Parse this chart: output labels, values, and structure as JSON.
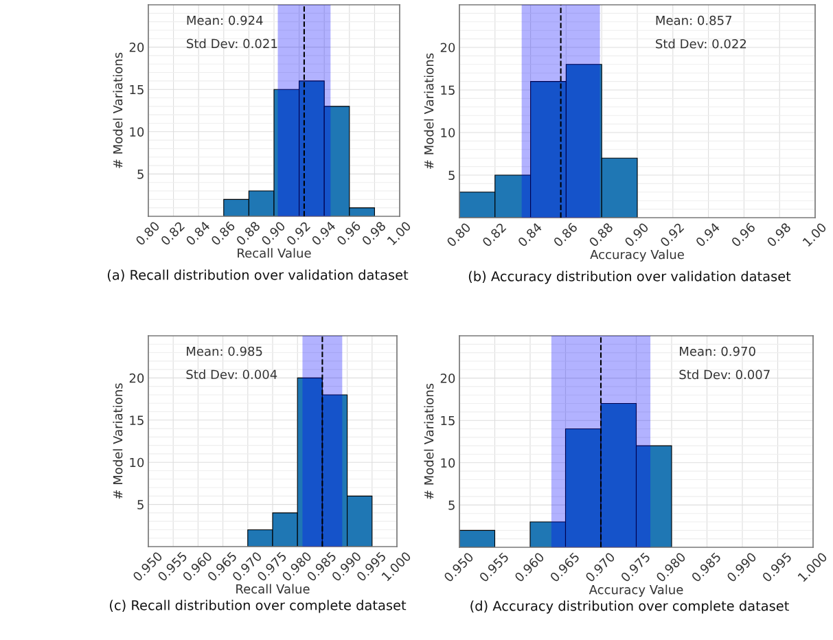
{
  "chart_data": [
    {
      "type": "histogram",
      "xlabel": "Recall Value",
      "ylabel": "# Model Variations",
      "bins": [
        0.86,
        0.88,
        0.9,
        0.92,
        0.94,
        0.96,
        0.98
      ],
      "values": [
        2,
        3,
        15,
        16,
        13,
        1
      ],
      "color": "#1f77b4",
      "xlim": [
        0.8,
        1.0
      ],
      "xticks": [
        {
          "value": 0.8,
          "label": "0.80"
        },
        {
          "value": 0.82,
          "label": "0.82"
        },
        {
          "value": 0.84,
          "label": "0.84"
        },
        {
          "value": 0.86,
          "label": "0.86"
        },
        {
          "value": 0.88,
          "label": "0.88"
        },
        {
          "value": 0.9,
          "label": "0.90"
        },
        {
          "value": 0.92,
          "label": "0.92"
        },
        {
          "value": 0.94,
          "label": "0.94"
        },
        {
          "value": 0.96,
          "label": "0.96"
        },
        {
          "value": 0.98,
          "label": "0.98"
        },
        {
          "value": 1.0,
          "label": "1.00"
        }
      ],
      "ylim": [
        0,
        25
      ],
      "yticks": [
        {
          "value": 1,
          "label": null
        },
        {
          "value": 2,
          "label": null
        },
        {
          "value": 3,
          "label": null
        },
        {
          "value": 4,
          "label": null
        },
        5,
        {
          "value": 6,
          "label": null
        },
        {
          "value": 7,
          "label": null
        },
        {
          "value": 8,
          "label": null
        },
        {
          "value": 9,
          "label": null
        },
        10,
        {
          "value": 11,
          "label": null
        },
        {
          "value": 12,
          "label": null
        },
        {
          "value": 13,
          "label": null
        },
        {
          "value": 14,
          "label": null
        },
        15,
        {
          "value": 16,
          "label": null
        },
        {
          "value": 17,
          "label": null
        },
        {
          "value": 18,
          "label": null
        },
        {
          "value": 19,
          "label": null
        },
        20,
        {
          "value": 21,
          "label": null
        },
        {
          "value": 22,
          "label": null
        },
        {
          "value": 23,
          "label": null
        },
        {
          "value": 24,
          "label": null
        }
      ],
      "grid": true,
      "ref_lines": [
        {
          "axis": "x",
          "value": 0.924,
          "color": "#000000",
          "line_style": "dashed"
        }
      ],
      "bands": [
        {
          "axis": "x",
          "from": 0.903,
          "to": 0.945,
          "color": "#0000ff"
        }
      ],
      "annotations": [
        "Mean: 0.924",
        "Std Dev: 0.021",
        "(a) Recall distribution over validation dataset"
      ]
    },
    {
      "type": "histogram",
      "xlabel": "Accuracy Value",
      "ylabel": "# Model Variations",
      "bins": [
        0.8,
        0.82,
        0.84,
        0.86,
        0.88,
        0.9
      ],
      "values": [
        3,
        5,
        16,
        18,
        7
      ],
      "color": "#1f77b4",
      "xlim": [
        0.8,
        1.0
      ],
      "xticks": [
        {
          "value": 0.8,
          "label": "0.80"
        },
        {
          "value": 0.82,
          "label": "0.82"
        },
        {
          "value": 0.84,
          "label": "0.84"
        },
        {
          "value": 0.86,
          "label": "0.86"
        },
        {
          "value": 0.88,
          "label": "0.88"
        },
        {
          "value": 0.9,
          "label": "0.90"
        },
        {
          "value": 0.92,
          "label": "0.92"
        },
        {
          "value": 0.94,
          "label": "0.94"
        },
        {
          "value": 0.96,
          "label": "0.96"
        },
        {
          "value": 0.98,
          "label": "0.98"
        },
        {
          "value": 1.0,
          "label": "1.00"
        }
      ],
      "ylim": [
        0,
        25
      ],
      "yticks": [
        {
          "value": 1,
          "label": null
        },
        {
          "value": 2,
          "label": null
        },
        {
          "value": 3,
          "label": null
        },
        {
          "value": 4,
          "label": null
        },
        5,
        {
          "value": 6,
          "label": null
        },
        {
          "value": 7,
          "label": null
        },
        {
          "value": 8,
          "label": null
        },
        {
          "value": 9,
          "label": null
        },
        10,
        {
          "value": 11,
          "label": null
        },
        {
          "value": 12,
          "label": null
        },
        {
          "value": 13,
          "label": null
        },
        {
          "value": 14,
          "label": null
        },
        15,
        {
          "value": 16,
          "label": null
        },
        {
          "value": 17,
          "label": null
        },
        {
          "value": 18,
          "label": null
        },
        {
          "value": 19,
          "label": null
        },
        20,
        {
          "value": 21,
          "label": null
        },
        {
          "value": 22,
          "label": null
        },
        {
          "value": 23,
          "label": null
        },
        {
          "value": 24,
          "label": null
        }
      ],
      "grid": true,
      "ref_lines": [
        {
          "axis": "x",
          "value": 0.857,
          "color": "#000000",
          "line_style": "dashed"
        }
      ],
      "bands": [
        {
          "axis": "x",
          "from": 0.835,
          "to": 0.879,
          "color": "#0000ff"
        }
      ],
      "annotations": [
        "Mean: 0.857",
        "Std Dev: 0.022",
        "(b) Accuracy distribution over validation dataset"
      ]
    },
    {
      "type": "histogram",
      "xlabel": "Recall Value",
      "ylabel": "# Model Variations",
      "bins": [
        0.97,
        0.975,
        0.98,
        0.985,
        0.99,
        0.995
      ],
      "values": [
        2,
        4,
        20,
        18,
        6
      ],
      "color": "#1f77b4",
      "xlim": [
        0.95,
        1.0
      ],
      "xticks": [
        {
          "value": 0.95,
          "label": "0.950"
        },
        {
          "value": 0.955,
          "label": "0.955"
        },
        {
          "value": 0.96,
          "label": "0.960"
        },
        {
          "value": 0.965,
          "label": "0.965"
        },
        {
          "value": 0.97,
          "label": "0.970"
        },
        {
          "value": 0.975,
          "label": "0.975"
        },
        {
          "value": 0.98,
          "label": "0.980"
        },
        {
          "value": 0.985,
          "label": "0.985"
        },
        {
          "value": 0.99,
          "label": "0.990"
        },
        {
          "value": 0.995,
          "label": "0.995"
        },
        {
          "value": 1.0,
          "label": "1.000"
        }
      ],
      "ylim": [
        0,
        25
      ],
      "yticks": [
        {
          "value": 1,
          "label": null
        },
        {
          "value": 2,
          "label": null
        },
        {
          "value": 3,
          "label": null
        },
        {
          "value": 4,
          "label": null
        },
        5,
        {
          "value": 6,
          "label": null
        },
        {
          "value": 7,
          "label": null
        },
        {
          "value": 8,
          "label": null
        },
        {
          "value": 9,
          "label": null
        },
        10,
        {
          "value": 11,
          "label": null
        },
        {
          "value": 12,
          "label": null
        },
        {
          "value": 13,
          "label": null
        },
        {
          "value": 14,
          "label": null
        },
        15,
        {
          "value": 16,
          "label": null
        },
        {
          "value": 17,
          "label": null
        },
        {
          "value": 18,
          "label": null
        },
        {
          "value": 19,
          "label": null
        },
        20,
        {
          "value": 21,
          "label": null
        },
        {
          "value": 22,
          "label": null
        },
        {
          "value": 23,
          "label": null
        },
        {
          "value": 24,
          "label": null
        }
      ],
      "grid": true,
      "ref_lines": [
        {
          "axis": "x",
          "value": 0.985,
          "color": "#000000",
          "line_style": "dashed"
        }
      ],
      "bands": [
        {
          "axis": "x",
          "from": 0.981,
          "to": 0.989,
          "color": "#0000ff"
        }
      ],
      "annotations": [
        "Mean: 0.985",
        "Std Dev: 0.004",
        "(c) Recall distribution over complete dataset"
      ]
    },
    {
      "type": "histogram",
      "xlabel": "Accuracy Value",
      "ylabel": "# Model Variations",
      "bins": [
        0.95,
        0.955,
        0.96,
        0.965,
        0.97,
        0.975,
        0.98
      ],
      "values": [
        2,
        0,
        3,
        14,
        17,
        12
      ],
      "color": "#1f77b4",
      "xlim": [
        0.95,
        1.0
      ],
      "xticks": [
        {
          "value": 0.95,
          "label": "0.950"
        },
        {
          "value": 0.955,
          "label": "0.955"
        },
        {
          "value": 0.96,
          "label": "0.960"
        },
        {
          "value": 0.965,
          "label": "0.965"
        },
        {
          "value": 0.97,
          "label": "0.970"
        },
        {
          "value": 0.975,
          "label": "0.975"
        },
        {
          "value": 0.98,
          "label": "0.980"
        },
        {
          "value": 0.985,
          "label": "0.985"
        },
        {
          "value": 0.99,
          "label": "0.990"
        },
        {
          "value": 0.995,
          "label": "0.995"
        },
        {
          "value": 1.0,
          "label": "1.000"
        }
      ],
      "ylim": [
        0,
        25
      ],
      "yticks": [
        {
          "value": 1,
          "label": null
        },
        {
          "value": 2,
          "label": null
        },
        {
          "value": 3,
          "label": null
        },
        {
          "value": 4,
          "label": null
        },
        5,
        {
          "value": 6,
          "label": null
        },
        {
          "value": 7,
          "label": null
        },
        {
          "value": 8,
          "label": null
        },
        {
          "value": 9,
          "label": null
        },
        10,
        {
          "value": 11,
          "label": null
        },
        {
          "value": 12,
          "label": null
        },
        {
          "value": 13,
          "label": null
        },
        {
          "value": 14,
          "label": null
        },
        15,
        {
          "value": 16,
          "label": null
        },
        {
          "value": 17,
          "label": null
        },
        {
          "value": 18,
          "label": null
        },
        {
          "value": 19,
          "label": null
        },
        20,
        {
          "value": 21,
          "label": null
        },
        {
          "value": 22,
          "label": null
        },
        {
          "value": 23,
          "label": null
        },
        {
          "value": 24,
          "label": null
        }
      ],
      "grid": true,
      "ref_lines": [
        {
          "axis": "x",
          "value": 0.97,
          "color": "#000000",
          "line_style": "dashed"
        }
      ],
      "bands": [
        {
          "axis": "x",
          "from": 0.963,
          "to": 0.977,
          "color": "#0000ff"
        }
      ],
      "annotations": [
        "Mean: 0.970",
        "Std Dev: 0.007",
        "(d) Accuracy distribution over complete dataset"
      ]
    }
  ]
}
